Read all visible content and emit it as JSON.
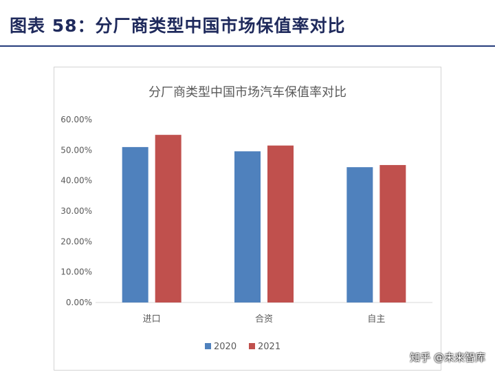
{
  "document": {
    "title": "图表 58：分厂商类型中国市场保值率对比"
  },
  "watermark": {
    "text": "知乎 @未来智库"
  },
  "chart_data": {
    "type": "bar",
    "title": "分厂商类型中国市场汽车保值率对比",
    "categories": [
      "进口",
      "合资",
      "自主"
    ],
    "series": [
      {
        "name": "2020",
        "values": [
          0.51,
          0.496,
          0.444
        ],
        "color": "#4f81bd"
      },
      {
        "name": "2021",
        "values": [
          0.55,
          0.515,
          0.451
        ],
        "color": "#c0504d"
      }
    ],
    "ylim": [
      0,
      0.6
    ],
    "yticks": [
      0,
      0.1,
      0.2,
      0.3,
      0.4,
      0.5,
      0.6
    ],
    "ytick_labels": [
      "0.00%",
      "10.00%",
      "20.00%",
      "30.00%",
      "40.00%",
      "50.00%",
      "60.00%"
    ],
    "xlabel": "",
    "ylabel": "",
    "grid": false,
    "legend_position": "bottom"
  }
}
